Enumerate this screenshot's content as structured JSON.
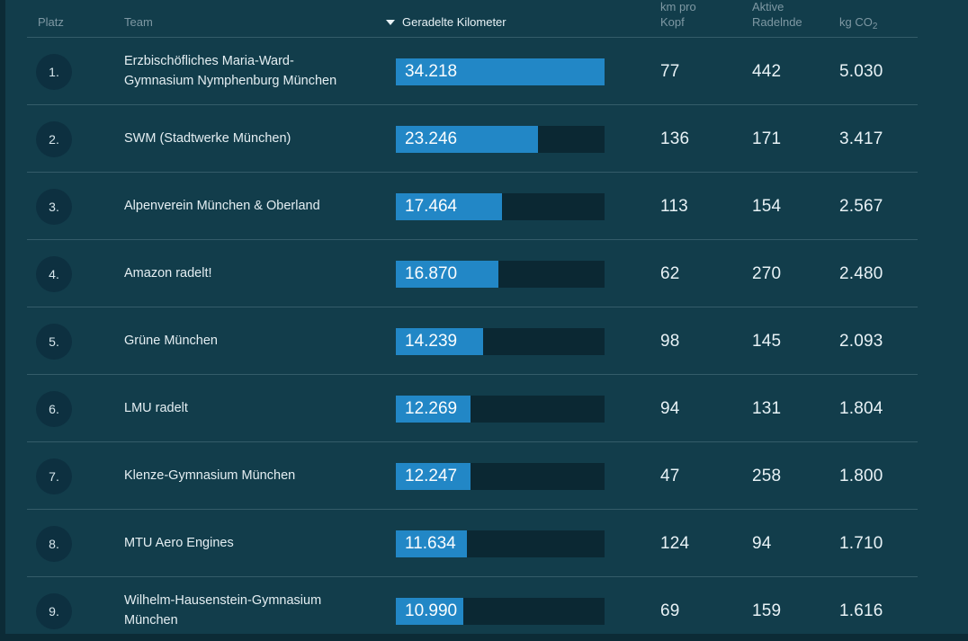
{
  "header": {
    "platz": "Platz",
    "team": "Team",
    "kilometer": "Geradelte Kilometer",
    "kilometer_sort_icon": "triangle-down-icon",
    "km_pro_kopf": "km pro Kopf",
    "aktive_radelnde": "Aktive Radelnde",
    "kg_co2_main": "kg CO",
    "kg_co2_sub": "2"
  },
  "bar_max": 34218,
  "rows": [
    {
      "rank": "1.",
      "team": "Erzbischöfliches Maria-Ward-Gymnasium Nymphenburg München",
      "km_value": 34218,
      "km_display": "34.218",
      "km_pro_kopf": "77",
      "aktive_radelnde": "442",
      "kg_co2": "5.030"
    },
    {
      "rank": "2.",
      "team": "SWM (Stadtwerke München)",
      "km_value": 23246,
      "km_display": "23.246",
      "km_pro_kopf": "136",
      "aktive_radelnde": "171",
      "kg_co2": "3.417"
    },
    {
      "rank": "3.",
      "team": "Alpenverein München & Oberland",
      "km_value": 17464,
      "km_display": "17.464",
      "km_pro_kopf": "113",
      "aktive_radelnde": "154",
      "kg_co2": "2.567"
    },
    {
      "rank": "4.",
      "team": "Amazon radelt!",
      "km_value": 16870,
      "km_display": "16.870",
      "km_pro_kopf": "62",
      "aktive_radelnde": "270",
      "kg_co2": "2.480"
    },
    {
      "rank": "5.",
      "team": "Grüne München",
      "km_value": 14239,
      "km_display": "14.239",
      "km_pro_kopf": "98",
      "aktive_radelnde": "145",
      "kg_co2": "2.093"
    },
    {
      "rank": "6.",
      "team": "LMU radelt",
      "km_value": 12269,
      "km_display": "12.269",
      "km_pro_kopf": "94",
      "aktive_radelnde": "131",
      "kg_co2": "1.804"
    },
    {
      "rank": "7.",
      "team": "Klenze-Gymnasium München",
      "km_value": 12247,
      "km_display": "12.247",
      "km_pro_kopf": "47",
      "aktive_radelnde": "258",
      "kg_co2": "1.800"
    },
    {
      "rank": "8.",
      "team": "MTU Aero Engines",
      "km_value": 11634,
      "km_display": "11.634",
      "km_pro_kopf": "124",
      "aktive_radelnde": "94",
      "kg_co2": "1.710"
    },
    {
      "rank": "9.",
      "team": "Wilhelm-Hausenstein-Gymnasium München",
      "km_value": 10990,
      "km_display": "10.990",
      "km_pro_kopf": "69",
      "aktive_radelnde": "159",
      "kg_co2": "1.616"
    }
  ],
  "colors": {
    "page_background": "#0C2B36",
    "card_background": "#123D4B",
    "bar_fill": "#2287C6",
    "bar_track": "#0B2833",
    "rank_circle": "#0D3040",
    "text_primary": "#E8F2F6",
    "text_muted": "#7E98A3",
    "separator": "rgba(173,203,214,0.22)"
  }
}
